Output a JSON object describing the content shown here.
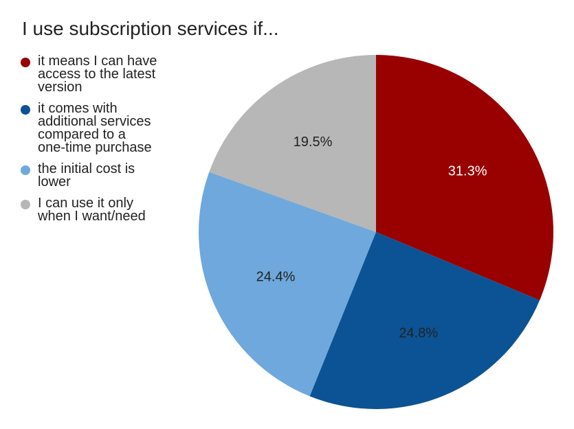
{
  "chart_data": {
    "type": "pie",
    "title": "I use subscription services if...",
    "slices": [
      {
        "label": "it means I can have access to the latest version",
        "value": 31.3,
        "display": "31.3%",
        "color": "#990000",
        "label_color": "#ffffff"
      },
      {
        "label": "it comes with additional services compared to a one-time purchase",
        "value": 24.8,
        "display": "24.8%",
        "color": "#0b5394",
        "label_color": "#222222"
      },
      {
        "label": "the initial cost is lower",
        "value": 24.4,
        "display": "24.4%",
        "color": "#6fa8dc",
        "label_color": "#222222"
      },
      {
        "label": "I can use it only when I want/need",
        "value": 19.5,
        "display": "19.5%",
        "color": "#b7b7b7",
        "label_color": "#222222"
      }
    ],
    "legend": {
      "position": "left",
      "lines": [
        [
          "it means I can have",
          "access to the latest",
          "version"
        ],
        [
          "it comes with",
          "additional services",
          "compared to a",
          "one-time purchase"
        ],
        [
          "the initial cost is",
          "lower"
        ],
        [
          "I can use it only",
          "when I want/need"
        ]
      ]
    }
  }
}
